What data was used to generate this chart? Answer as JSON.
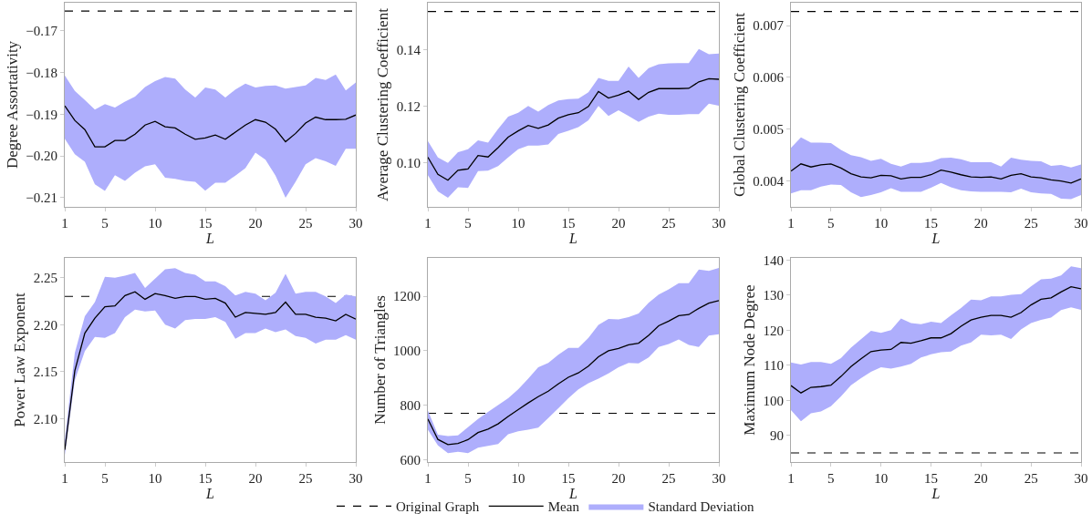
{
  "chart_data": [
    {
      "type": "line",
      "xlabel": "L",
      "ylabel": "Degree Assortativity",
      "x": [
        1,
        2,
        3,
        4,
        5,
        6,
        7,
        8,
        9,
        10,
        11,
        12,
        13,
        14,
        15,
        16,
        17,
        18,
        19,
        20,
        21,
        22,
        23,
        24,
        25,
        26,
        27,
        28,
        29,
        30
      ],
      "xlim": [
        1,
        30
      ],
      "xticks": [
        1,
        5,
        10,
        15,
        20,
        25,
        30
      ],
      "ylim": [
        -0.2122,
        -0.1633
      ],
      "yticks": [
        -0.21,
        {
          "value": -0.2,
          "label": "−0.20"
        },
        -0.19,
        -0.18,
        -0.17
      ],
      "grid": false,
      "legend": "bottom",
      "annotations": [
        "Standard Deviation"
      ],
      "series": [
        {
          "name": "Mean",
          "color": "#000000",
          "values": [
            -0.188,
            -0.1915,
            -0.1937,
            -0.1978,
            -0.1978,
            -0.1963,
            -0.1963,
            -0.1948,
            -0.1926,
            -0.1917,
            -0.193,
            -0.1933,
            -0.1948,
            -0.196,
            -0.1957,
            -0.195,
            -0.196,
            -0.1943,
            -0.1926,
            -0.1913,
            -0.1919,
            -0.1936,
            -0.1966,
            -0.1946,
            -0.1921,
            -0.1907,
            -0.1913,
            -0.1913,
            -0.1912,
            -0.1902
          ],
          "lower": [
            -0.1959,
            -0.1996,
            -0.2014,
            -0.2068,
            -0.2084,
            -0.2046,
            -0.206,
            -0.204,
            -0.2025,
            -0.202,
            -0.2052,
            -0.2055,
            -0.206,
            -0.2062,
            -0.2083,
            -0.2064,
            -0.2064,
            -0.2047,
            -0.2029,
            -0.1992,
            -0.2009,
            -0.2047,
            -0.21,
            -0.2062,
            -0.202,
            -0.2005,
            -0.2013,
            -0.2024,
            -0.1983,
            -0.1983
          ],
          "upper": [
            -0.1807,
            -0.1844,
            -0.1866,
            -0.1889,
            -0.1876,
            -0.1884,
            -0.187,
            -0.1858,
            -0.1835,
            -0.1821,
            -0.1811,
            -0.1815,
            -0.1841,
            -0.186,
            -0.1836,
            -0.1841,
            -0.186,
            -0.1841,
            -0.1827,
            -0.1836,
            -0.1832,
            -0.1831,
            -0.1839,
            -0.1835,
            -0.1831,
            -0.1813,
            -0.1818,
            -0.1805,
            -0.1843,
            -0.1824
          ]
        }
      ],
      "ref_lines": [
        {
          "axis": "y",
          "value": -0.1653,
          "label": "Original Graph",
          "color": "#000000",
          "line_style": "dashed"
        }
      ]
    },
    {
      "type": "line",
      "xlabel": "L",
      "ylabel": "Average Clustering Coefficient",
      "x": [
        1,
        2,
        3,
        4,
        5,
        6,
        7,
        8,
        9,
        10,
        11,
        12,
        13,
        14,
        15,
        16,
        17,
        18,
        19,
        20,
        21,
        22,
        23,
        24,
        25,
        26,
        27,
        28,
        29,
        30
      ],
      "xlim": [
        1,
        30
      ],
      "xticks": [
        1,
        5,
        10,
        15,
        20,
        25,
        30
      ],
      "ylim": [
        0.0845,
        0.1565
      ],
      "yticks": [
        {
          "value": 0.1,
          "label": "0.10"
        },
        0.12,
        0.14
      ],
      "grid": false,
      "series": [
        {
          "color": "#000000",
          "values": [
            0.102,
            0.096,
            0.0939,
            0.0974,
            0.0979,
            0.1026,
            0.1021,
            0.1054,
            0.1091,
            0.1113,
            0.1132,
            0.1122,
            0.1134,
            0.1158,
            0.117,
            0.1177,
            0.1199,
            0.1252,
            0.1229,
            0.1239,
            0.1253,
            0.1224,
            0.1249,
            0.1262,
            0.1262,
            0.1262,
            0.1263,
            0.1286,
            0.1297,
            0.1295
          ],
          "lower": [
            0.0957,
            0.09,
            0.0877,
            0.0914,
            0.0912,
            0.0971,
            0.0973,
            0.0989,
            0.1019,
            0.1048,
            0.1061,
            0.1061,
            0.1065,
            0.1102,
            0.1113,
            0.1126,
            0.115,
            0.1201,
            0.1166,
            0.1186,
            0.1166,
            0.1145,
            0.1163,
            0.1174,
            0.117,
            0.117,
            0.1172,
            0.1172,
            0.1209,
            0.1202
          ],
          "upper": [
            0.1077,
            0.1019,
            0.1,
            0.1038,
            0.1048,
            0.108,
            0.1072,
            0.112,
            0.1163,
            0.1177,
            0.1201,
            0.1181,
            0.1204,
            0.122,
            0.1225,
            0.1227,
            0.1249,
            0.13,
            0.1289,
            0.1289,
            0.134,
            0.13,
            0.1334,
            0.1348,
            0.1351,
            0.1352,
            0.1352,
            0.1402,
            0.1383,
            0.1386
          ]
        }
      ],
      "ref_lines": [
        {
          "axis": "y",
          "value": 0.1534,
          "color": "#000000",
          "line_style": "dashed"
        }
      ]
    },
    {
      "type": "line",
      "xlabel": "L",
      "ylabel": "Global Clustering Coefficient",
      "x": [
        1,
        2,
        3,
        4,
        5,
        6,
        7,
        8,
        9,
        10,
        11,
        12,
        13,
        14,
        15,
        16,
        17,
        18,
        19,
        20,
        21,
        22,
        23,
        24,
        25,
        26,
        27,
        28,
        29,
        30
      ],
      "xlim": [
        1,
        30
      ],
      "xticks": [
        1,
        5,
        10,
        15,
        20,
        25,
        30
      ],
      "ylim": [
        0.0035,
        0.00744
      ],
      "yticks": [
        0.004,
        0.005,
        0.006,
        0.007
      ],
      "grid": false,
      "series": [
        {
          "color": "#000000",
          "values": [
            0.00419,
            0.00433,
            0.00427,
            0.00431,
            0.00433,
            0.00425,
            0.00414,
            0.00408,
            0.00406,
            0.00411,
            0.0041,
            0.00404,
            0.00407,
            0.00407,
            0.00412,
            0.00421,
            0.00417,
            0.00412,
            0.00408,
            0.00407,
            0.00408,
            0.00404,
            0.00411,
            0.00414,
            0.00408,
            0.00406,
            0.00402,
            0.004,
            0.00396,
            0.00404
          ],
          "lower": [
            0.00376,
            0.00382,
            0.00382,
            0.00389,
            0.00393,
            0.00392,
            0.00378,
            0.00369,
            0.00373,
            0.00378,
            0.00386,
            0.00379,
            0.00379,
            0.00379,
            0.00387,
            0.00396,
            0.00388,
            0.00382,
            0.0038,
            0.00379,
            0.00379,
            0.00379,
            0.00378,
            0.00385,
            0.00378,
            0.00376,
            0.00375,
            0.00366,
            0.00365,
            0.00373
          ],
          "upper": [
            0.00464,
            0.00484,
            0.00474,
            0.00474,
            0.00473,
            0.0046,
            0.0045,
            0.00446,
            0.00439,
            0.00443,
            0.00433,
            0.00428,
            0.00435,
            0.00435,
            0.00437,
            0.00444,
            0.00445,
            0.00442,
            0.00436,
            0.00436,
            0.00436,
            0.00428,
            0.00445,
            0.00441,
            0.00439,
            0.00438,
            0.00429,
            0.00431,
            0.00426,
            0.00432
          ]
        }
      ],
      "ref_lines": [
        {
          "axis": "y",
          "value": 0.00727,
          "color": "#000000",
          "line_style": "dashed"
        }
      ]
    },
    {
      "type": "line",
      "xlabel": "L",
      "ylabel": "Power Law Exponent",
      "x": [
        1,
        2,
        3,
        4,
        5,
        6,
        7,
        8,
        9,
        10,
        11,
        12,
        13,
        14,
        15,
        16,
        17,
        18,
        19,
        20,
        21,
        22,
        23,
        24,
        25,
        26,
        27,
        28,
        29,
        30
      ],
      "xlim": [
        1,
        30
      ],
      "xticks": [
        1,
        5,
        10,
        15,
        20,
        25,
        30
      ],
      "ylim": [
        2.054,
        2.271
      ],
      "yticks": [
        {
          "value": 2.1,
          "label": "2.10"
        },
        2.15,
        {
          "value": 2.2,
          "label": "2.20"
        },
        2.25
      ],
      "grid": false,
      "series": [
        {
          "color": "#000000",
          "values": [
            2.067,
            2.151,
            2.191,
            2.207,
            2.219,
            2.22,
            2.231,
            2.235,
            2.227,
            2.233,
            2.231,
            2.228,
            2.23,
            2.23,
            2.227,
            2.228,
            2.223,
            2.208,
            2.213,
            2.212,
            2.211,
            2.213,
            2.224,
            2.211,
            2.211,
            2.208,
            2.207,
            2.204,
            2.211,
            2.206
          ],
          "lower": [
            2.061,
            2.141,
            2.172,
            2.187,
            2.186,
            2.191,
            2.208,
            2.216,
            2.214,
            2.215,
            2.2,
            2.196,
            2.205,
            2.206,
            2.206,
            2.208,
            2.203,
            2.185,
            2.191,
            2.191,
            2.196,
            2.192,
            2.195,
            2.188,
            2.186,
            2.18,
            2.184,
            2.184,
            2.189,
            2.184
          ],
          "upper": [
            2.077,
            2.17,
            2.209,
            2.224,
            2.251,
            2.25,
            2.252,
            2.255,
            2.239,
            2.249,
            2.259,
            2.26,
            2.255,
            2.253,
            2.246,
            2.246,
            2.241,
            2.231,
            2.235,
            2.233,
            2.226,
            2.234,
            2.254,
            2.233,
            2.235,
            2.235,
            2.23,
            2.223,
            2.232,
            2.23
          ]
        }
      ],
      "ref_lines": [
        {
          "axis": "y",
          "value": 2.23,
          "color": "#000000",
          "line_style": "dashed"
        }
      ]
    },
    {
      "type": "line",
      "xlabel": "L",
      "ylabel": "Number of Triangles",
      "x": [
        1,
        2,
        3,
        4,
        5,
        6,
        7,
        8,
        9,
        10,
        11,
        12,
        13,
        14,
        15,
        16,
        17,
        18,
        19,
        20,
        21,
        22,
        23,
        24,
        25,
        26,
        27,
        28,
        29,
        30
      ],
      "xlim": [
        1,
        30
      ],
      "xticks": [
        1,
        5,
        10,
        15,
        20,
        25,
        30
      ],
      "ylim": [
        592,
        1341
      ],
      "yticks": [
        600,
        800,
        1000,
        1200
      ],
      "grid": false,
      "series": [
        {
          "color": "#000000",
          "values": [
            750,
            675,
            656,
            660,
            674,
            700,
            713,
            732,
            759,
            784,
            809,
            832,
            852,
            879,
            903,
            919,
            944,
            978,
            1000,
            1009,
            1022,
            1028,
            1057,
            1092,
            1109,
            1129,
            1133,
            1156,
            1175,
            1184
          ],
          "lower": [
            711,
            653,
            625,
            630,
            625,
            645,
            651,
            658,
            694,
            705,
            711,
            718,
            753,
            789,
            826,
            859,
            881,
            898,
            917,
            940,
            956,
            954,
            976,
            1014,
            1025,
            1042,
            1022,
            1014,
            1056,
            1061
          ],
          "upper": [
            781,
            692,
            687,
            690,
            720,
            750,
            776,
            801,
            826,
            859,
            898,
            940,
            956,
            986,
            1011,
            1011,
            1048,
            1095,
            1117,
            1115,
            1124,
            1137,
            1176,
            1206,
            1226,
            1248,
            1248,
            1298,
            1293,
            1304
          ]
        }
      ],
      "ref_lines": [
        {
          "axis": "y",
          "value": 771,
          "color": "#000000",
          "line_style": "dashed"
        }
      ]
    },
    {
      "type": "line",
      "xlabel": "L",
      "ylabel": "Maximum Node Degree",
      "x": [
        1,
        2,
        3,
        4,
        5,
        6,
        7,
        8,
        9,
        10,
        11,
        12,
        13,
        14,
        15,
        16,
        17,
        18,
        19,
        20,
        21,
        22,
        23,
        24,
        25,
        26,
        27,
        28,
        29,
        30
      ],
      "xlim": [
        1,
        30
      ],
      "xticks": [
        1,
        5,
        10,
        15,
        20,
        25,
        30
      ],
      "ylim": [
        82.4,
        140.6
      ],
      "yticks": [
        90,
        100,
        110,
        120,
        130,
        140
      ],
      "grid": false,
      "series": [
        {
          "color": "#000000",
          "values": [
            104.2,
            102.1,
            103.7,
            103.9,
            104.3,
            106.8,
            109.6,
            111.8,
            113.9,
            114.3,
            114.5,
            116.5,
            116.3,
            117,
            117.8,
            117.8,
            119,
            121.1,
            122.9,
            123.7,
            124.2,
            124.2,
            123.7,
            125,
            127.2,
            128.8,
            129.2,
            130.9,
            132.4,
            131.8
          ],
          "lower": [
            97.2,
            94,
            96.3,
            96.8,
            98.3,
            101.1,
            104.3,
            106.3,
            108.1,
            109.4,
            109,
            109.6,
            110.4,
            112.2,
            113.1,
            113.7,
            113.9,
            115.6,
            116.5,
            118.7,
            118.5,
            118.7,
            117.5,
            120.2,
            122,
            122.9,
            123.6,
            125.7,
            126.5,
            125.8
          ],
          "upper": [
            110.8,
            110.2,
            110.9,
            110.9,
            110.4,
            112,
            115,
            117.4,
            119.8,
            119.2,
            120,
            123.3,
            122,
            121.7,
            122.4,
            122,
            124.2,
            126.3,
            128.7,
            128.5,
            129.6,
            129.6,
            130.1,
            130.3,
            132.5,
            134.5,
            134.7,
            135.6,
            138.2,
            137.7
          ]
        }
      ],
      "ref_lines": [
        {
          "axis": "y",
          "value": 85,
          "color": "#000000",
          "line_style": "dashed"
        }
      ]
    }
  ]
}
